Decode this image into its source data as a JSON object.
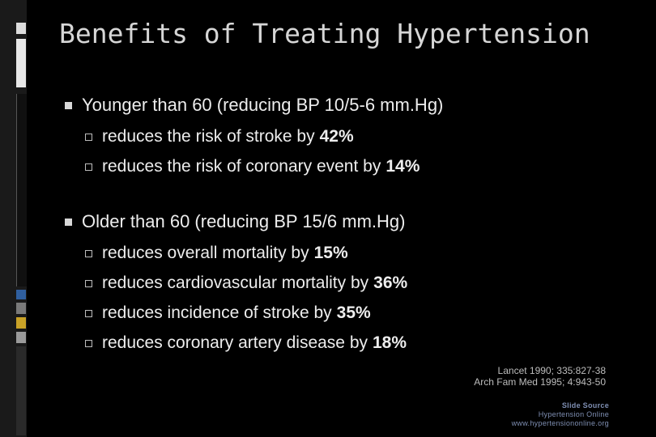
{
  "slide": {
    "title": "Benefits of Treating Hypertension",
    "groups": [
      {
        "heading": "Younger than 60 (reducing BP 10/5-6 mm.Hg)",
        "items": [
          {
            "text": "reduces the risk of stroke by",
            "value": "42%"
          },
          {
            "text": "reduces the risk of coronary event by",
            "value": "14%"
          }
        ]
      },
      {
        "heading": "Older than 60 (reducing BP 15/6 mm.Hg)",
        "items": [
          {
            "text": "reduces overall mortality by",
            "value": "15%"
          },
          {
            "text": "reduces cardiovascular mortality by",
            "value": "36%"
          },
          {
            "text": "reduces incidence of stroke by",
            "value": "35%"
          },
          {
            "text": "reduces coronary artery disease by",
            "value": "18%"
          }
        ]
      }
    ],
    "references": [
      "Lancet 1990; 335:827-38",
      "Arch Fam Med 1995; 4:943-50"
    ],
    "source": {
      "label": "Slide Source",
      "name": "Hypertension Online",
      "url": "www.hypertensiononline.org"
    }
  },
  "colors": {
    "background": "#000000",
    "text": "#ededed",
    "accent_blue": "#1f4e8c"
  }
}
